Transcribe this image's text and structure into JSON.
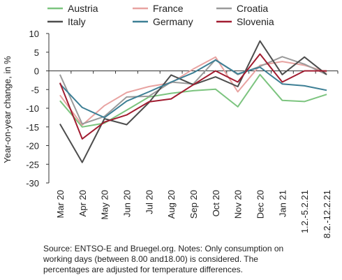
{
  "chart_data": {
    "type": "line",
    "ylabel": "Year-on-year change, in %",
    "xlabel": "",
    "ylim": [
      -30,
      10
    ],
    "yticks": [
      "10",
      "5",
      "0",
      "-5",
      "-10",
      "-15",
      "-20",
      "-25",
      "-30"
    ],
    "categories": [
      "Mar 20",
      "Apr 20",
      "May 20",
      "Jun 20",
      "Jul 20",
      "Aug 20",
      "Sep 20",
      "Oct 20",
      "Nov 20",
      "Dec 20",
      "Jan 21",
      "1.2.-5.2.21",
      "8.2.-12.2.21"
    ],
    "grid": false,
    "legend_position": "top",
    "series": [
      {
        "name": "Austria",
        "color": "#7cc47f",
        "values": [
          -8,
          -15,
          -14,
          -10.5,
          -7,
          -6,
          -5.3,
          -4.9,
          -9.6,
          -1,
          -7.9,
          -8.2,
          -6.3
        ]
      },
      {
        "name": "France",
        "color": "#e8a3a1",
        "values": [
          -6.5,
          -14.5,
          -9.3,
          -5.8,
          -4.2,
          -3.2,
          0.5,
          3.7,
          -5.6,
          1.5,
          2.5,
          1.5,
          -0.3
        ]
      },
      {
        "name": "Croatia",
        "color": "#9a9a9a",
        "values": [
          -1,
          -14.2,
          -12.2,
          -7,
          -6.8,
          -3,
          -3.5,
          3,
          -1,
          1.2,
          3.8,
          1.8,
          -1
        ]
      },
      {
        "name": "Italy",
        "color": "#4d4d4d",
        "values": [
          -14.2,
          -24.5,
          -12.8,
          -14.4,
          -8.5,
          -1.1,
          -3.7,
          -1.6,
          -4.2,
          8,
          -1,
          3.7,
          -1
        ]
      },
      {
        "name": "Germany",
        "color": "#3d7f95",
        "values": [
          -3.5,
          -9.8,
          -12.5,
          -8.1,
          -5.6,
          -3,
          -0.5,
          2.9,
          -0.8,
          1,
          -3.5,
          -4,
          -5.2
        ]
      },
      {
        "name": "Slovenia",
        "color": "#a11c30",
        "values": [
          -3.2,
          -18.2,
          -13.7,
          -11.8,
          -8.3,
          -7.5,
          -3.7,
          0,
          -3,
          4.5,
          -3,
          0,
          0
        ]
      }
    ]
  },
  "note": {
    "line1": "Source: ENTSO-E and Bruegel.org. Notes: Only consumption on",
    "line2": "working days (between 8.00 and18.00) is considered. The",
    "line3": "percentages are adjusted for temperature differences."
  }
}
